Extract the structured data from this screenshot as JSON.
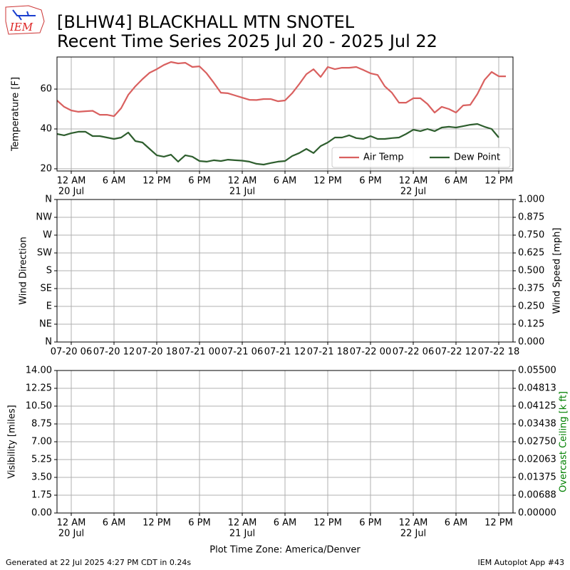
{
  "logo": {
    "text": "IEM"
  },
  "footer": {
    "left": "Generated at 22 Jul 2025 4:27 PM CDT in 0.24s",
    "right": "IEM Autoplot App #43"
  },
  "chart_data": [
    {
      "type": "line",
      "title": "[BLHW4] BLACKHALL MTN SNOTEL",
      "subtitle": "Recent Time Series 2025 Jul 20 - 2025 Jul 22",
      "ylabel": "Temperature [F]",
      "grid": true,
      "legend": "lower right",
      "xlim": [
        "2025-07-19 22:00",
        "2025-07-22 14:00"
      ],
      "xticks": [
        {
          "value": "2025-07-20 00:00",
          "label": [
            "12 AM",
            "20 Jul"
          ]
        },
        {
          "value": "2025-07-20 06:00",
          "label": [
            "6 AM"
          ]
        },
        {
          "value": "2025-07-20 12:00",
          "label": [
            "12 PM"
          ]
        },
        {
          "value": "2025-07-20 18:00",
          "label": [
            "6 PM"
          ]
        },
        {
          "value": "2025-07-21 00:00",
          "label": [
            "12 AM",
            "21 Jul"
          ]
        },
        {
          "value": "2025-07-21 06:00",
          "label": [
            "6 AM"
          ]
        },
        {
          "value": "2025-07-21 12:00",
          "label": [
            "12 PM"
          ]
        },
        {
          "value": "2025-07-21 18:00",
          "label": [
            "6 PM"
          ]
        },
        {
          "value": "2025-07-22 00:00",
          "label": [
            "12 AM",
            "22 Jul"
          ]
        },
        {
          "value": "2025-07-22 06:00",
          "label": [
            "6 AM"
          ]
        },
        {
          "value": "2025-07-22 12:00",
          "label": [
            "12 PM"
          ]
        }
      ],
      "ylim": [
        18.9,
        76.1
      ],
      "yticks": [
        20,
        40,
        60
      ],
      "x": [
        "2025-07-19 22:00",
        "2025-07-19 23:00",
        "2025-07-20 00:00",
        "2025-07-20 01:00",
        "2025-07-20 02:00",
        "2025-07-20 03:00",
        "2025-07-20 04:00",
        "2025-07-20 05:00",
        "2025-07-20 06:00",
        "2025-07-20 07:00",
        "2025-07-20 08:00",
        "2025-07-20 09:00",
        "2025-07-20 10:00",
        "2025-07-20 11:00",
        "2025-07-20 12:00",
        "2025-07-20 13:00",
        "2025-07-20 14:00",
        "2025-07-20 15:00",
        "2025-07-20 16:00",
        "2025-07-20 17:00",
        "2025-07-20 18:00",
        "2025-07-20 19:00",
        "2025-07-20 20:00",
        "2025-07-20 21:00",
        "2025-07-20 22:00",
        "2025-07-20 23:00",
        "2025-07-21 00:00",
        "2025-07-21 01:00",
        "2025-07-21 02:00",
        "2025-07-21 03:00",
        "2025-07-21 04:00",
        "2025-07-21 05:00",
        "2025-07-21 06:00",
        "2025-07-21 07:00",
        "2025-07-21 08:00",
        "2025-07-21 09:00",
        "2025-07-21 10:00",
        "2025-07-21 11:00",
        "2025-07-21 12:00",
        "2025-07-21 13:00",
        "2025-07-21 14:00",
        "2025-07-21 15:00",
        "2025-07-21 16:00",
        "2025-07-21 17:00",
        "2025-07-21 18:00",
        "2025-07-21 19:00",
        "2025-07-21 20:00",
        "2025-07-21 21:00",
        "2025-07-21 22:00",
        "2025-07-21 23:00",
        "2025-07-22 00:00",
        "2025-07-22 01:00",
        "2025-07-22 02:00",
        "2025-07-22 03:00",
        "2025-07-22 04:00",
        "2025-07-22 05:00",
        "2025-07-22 06:00",
        "2025-07-22 07:00",
        "2025-07-22 08:00",
        "2025-07-22 09:00",
        "2025-07-22 10:00",
        "2025-07-22 11:00",
        "2025-07-22 12:00",
        "2025-07-22 13:00"
      ],
      "series": [
        {
          "name": "Air Temp",
          "color": "#d9605f",
          "values": [
            54.3,
            51.1,
            49.3,
            48.6,
            48.9,
            49.1,
            47.1,
            47.1,
            46.4,
            50.4,
            57.1,
            61.4,
            65,
            68.2,
            70,
            72.1,
            73.6,
            72.9,
            73.2,
            71.1,
            71.4,
            67.9,
            63.2,
            58.2,
            57.9,
            56.8,
            55.7,
            54.6,
            54.5,
            55,
            55,
            53.9,
            54.3,
            57.9,
            62.5,
            67.5,
            70,
            66.1,
            71.1,
            70,
            70.7,
            70.7,
            71.1,
            69.6,
            67.9,
            67.1,
            61.4,
            58.2,
            53.2,
            53.2,
            55.4,
            55.4,
            52.5,
            48.2,
            51.1,
            50,
            48.2,
            51.8,
            52.1,
            57.5,
            64.6,
            68.6,
            66.4,
            66.4
          ]
        },
        {
          "name": "Dew Point",
          "color": "#2e5e2e",
          "values": [
            37.5,
            36.8,
            37.9,
            38.6,
            38.6,
            36.4,
            36.4,
            35.7,
            35,
            35.7,
            38.2,
            33.9,
            33.2,
            30,
            26.8,
            26.1,
            27.1,
            23.6,
            26.8,
            26.1,
            23.9,
            23.6,
            24.3,
            23.9,
            24.6,
            24.3,
            24.1,
            23.6,
            22.5,
            22.1,
            22.9,
            23.6,
            23.9,
            26.4,
            27.9,
            30,
            27.9,
            31.4,
            33.2,
            35.7,
            35.7,
            36.8,
            35.4,
            35,
            36.4,
            35,
            35,
            35.4,
            35.7,
            37.5,
            39.6,
            38.9,
            40,
            38.9,
            40.7,
            41.1,
            40.7,
            41.4,
            42.1,
            42.5,
            41.1,
            40,
            35.7,
            null
          ]
        }
      ]
    },
    {
      "type": "line",
      "ylabel": "Wind Direction",
      "y2label": "Wind Speed [mph]",
      "grid": true,
      "xlim": [
        "2025-07-20 04:00",
        "2025-07-22 20:00"
      ],
      "xticks": [
        {
          "value": "2025-07-20 06:00",
          "label": [
            "07-20 06"
          ]
        },
        {
          "value": "2025-07-20 12:00",
          "label": [
            "07-20 12"
          ]
        },
        {
          "value": "2025-07-20 18:00",
          "label": [
            "07-20 18"
          ]
        },
        {
          "value": "2025-07-21 00:00",
          "label": [
            "07-21 00"
          ]
        },
        {
          "value": "2025-07-21 06:00",
          "label": [
            "07-21 06"
          ]
        },
        {
          "value": "2025-07-21 12:00",
          "label": [
            "07-21 12"
          ]
        },
        {
          "value": "2025-07-21 18:00",
          "label": [
            "07-21 18"
          ]
        },
        {
          "value": "2025-07-22 00:00",
          "label": [
            "07-22 00"
          ]
        },
        {
          "value": "2025-07-22 06:00",
          "label": [
            "07-22 06"
          ]
        },
        {
          "value": "2025-07-22 12:00",
          "label": [
            "07-22 12"
          ]
        },
        {
          "value": "2025-07-22 18:00",
          "label": [
            "07-22 18"
          ]
        }
      ],
      "ylim": [
        0,
        360
      ],
      "yticks": [
        {
          "value": 0,
          "label": "N"
        },
        {
          "value": 45,
          "label": "NE"
        },
        {
          "value": 90,
          "label": "E"
        },
        {
          "value": 135,
          "label": "SE"
        },
        {
          "value": 180,
          "label": "S"
        },
        {
          "value": 225,
          "label": "SW"
        },
        {
          "value": 270,
          "label": "W"
        },
        {
          "value": 315,
          "label": "NW"
        },
        {
          "value": 360,
          "label": "N"
        }
      ],
      "y2lim": [
        0,
        1
      ],
      "y2ticks": [
        {
          "value": 0,
          "label": "0.000"
        },
        {
          "value": 0.125,
          "label": "0.125"
        },
        {
          "value": 0.25,
          "label": "0.250"
        },
        {
          "value": 0.375,
          "label": "0.375"
        },
        {
          "value": 0.5,
          "label": "0.500"
        },
        {
          "value": 0.625,
          "label": "0.625"
        },
        {
          "value": 0.75,
          "label": "0.750"
        },
        {
          "value": 0.875,
          "label": "0.875"
        },
        {
          "value": 1,
          "label": "1.000"
        }
      ],
      "series": []
    },
    {
      "type": "line",
      "ylabel": "Visibility [miles]",
      "y2label": "Overcast Ceiling [k ft]",
      "y2label_color": "#008000",
      "xlabel": "Plot Time Zone: America/Denver",
      "grid": true,
      "xlim": [
        "2025-07-19 22:00",
        "2025-07-22 14:00"
      ],
      "xticks": [
        {
          "value": "2025-07-20 00:00",
          "label": [
            "12 AM",
            "20 Jul"
          ]
        },
        {
          "value": "2025-07-20 06:00",
          "label": [
            "6 AM"
          ]
        },
        {
          "value": "2025-07-20 12:00",
          "label": [
            "12 PM"
          ]
        },
        {
          "value": "2025-07-20 18:00",
          "label": [
            "6 PM"
          ]
        },
        {
          "value": "2025-07-21 00:00",
          "label": [
            "12 AM",
            "21 Jul"
          ]
        },
        {
          "value": "2025-07-21 06:00",
          "label": [
            "6 AM"
          ]
        },
        {
          "value": "2025-07-21 12:00",
          "label": [
            "12 PM"
          ]
        },
        {
          "value": "2025-07-21 18:00",
          "label": [
            "6 PM"
          ]
        },
        {
          "value": "2025-07-22 00:00",
          "label": [
            "12 AM",
            "22 Jul"
          ]
        },
        {
          "value": "2025-07-22 06:00",
          "label": [
            "6 AM"
          ]
        },
        {
          "value": "2025-07-22 12:00",
          "label": [
            "12 PM"
          ]
        }
      ],
      "ylim": [
        0,
        14
      ],
      "yticks": [
        {
          "value": 0,
          "label": "0.00"
        },
        {
          "value": 1.75,
          "label": "1.75"
        },
        {
          "value": 3.5,
          "label": "3.50"
        },
        {
          "value": 5.25,
          "label": "5.25"
        },
        {
          "value": 7,
          "label": "7.00"
        },
        {
          "value": 8.75,
          "label": "8.75"
        },
        {
          "value": 10.5,
          "label": "10.50"
        },
        {
          "value": 12.25,
          "label": "12.25"
        },
        {
          "value": 14,
          "label": "14.00"
        }
      ],
      "y2lim": [
        0,
        0.055
      ],
      "y2ticks": [
        {
          "value": 0,
          "label": "0.00000"
        },
        {
          "value": 0.006875,
          "label": "0.00688"
        },
        {
          "value": 0.01375,
          "label": "0.01375"
        },
        {
          "value": 0.020625,
          "label": "0.02063"
        },
        {
          "value": 0.0275,
          "label": "0.02750"
        },
        {
          "value": 0.034375,
          "label": "0.03438"
        },
        {
          "value": 0.04125,
          "label": "0.04125"
        },
        {
          "value": 0.048125,
          "label": "0.04813"
        },
        {
          "value": 0.055,
          "label": "0.05500"
        }
      ],
      "series": []
    }
  ]
}
